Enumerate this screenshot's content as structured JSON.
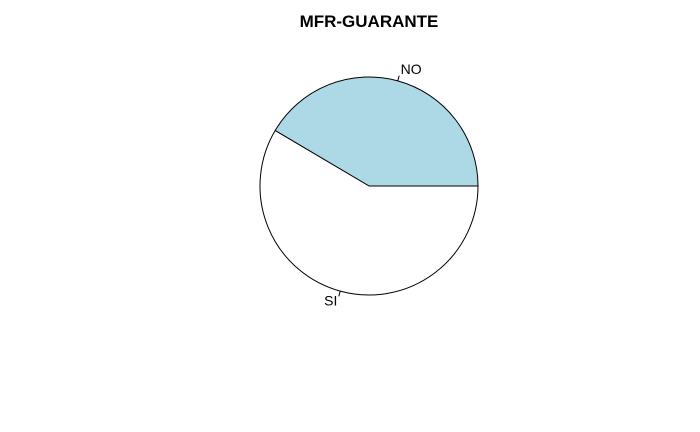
{
  "chart_data": {
    "type": "pie",
    "title": "MFR-GUARANTE",
    "slices": [
      {
        "label": "NO",
        "value": 41.5,
        "color": "#add8e6"
      },
      {
        "label": "SI",
        "value": 58.5,
        "color": "#ffffff"
      }
    ],
    "start": "3 o'clock",
    "direction": "counterclockwise",
    "outline_color": "#000000",
    "legend": "none"
  }
}
